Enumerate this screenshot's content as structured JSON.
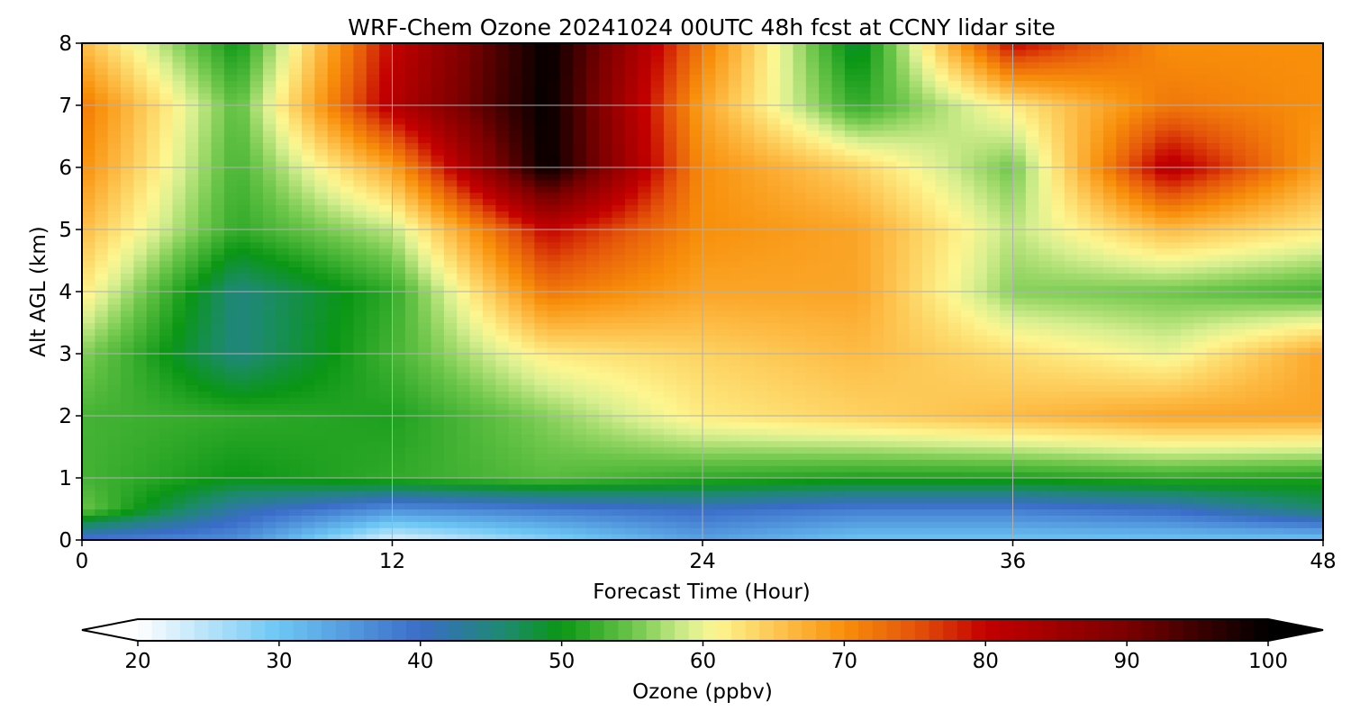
{
  "chart_data": {
    "type": "heatmap",
    "title": "WRF-Chem Ozone  20241024 00UTC 48h fcst at CCNY lidar site",
    "xlabel": "Forecast Time (Hour)",
    "ylabel": "Alt AGL (km)",
    "xlim": [
      0,
      48
    ],
    "ylim": [
      0,
      8
    ],
    "xticks": [
      0,
      12,
      24,
      36,
      48
    ],
    "yticks": [
      0,
      1,
      2,
      3,
      4,
      5,
      6,
      7,
      8
    ],
    "grid": true,
    "x": [
      0,
      6,
      12,
      18,
      24,
      30,
      36,
      42,
      48
    ],
    "y": [
      0,
      0.5,
      1,
      2,
      3,
      4,
      5,
      6,
      7,
      8
    ],
    "z": [
      [
        38,
        36,
        22,
        28,
        34,
        30,
        30,
        30,
        30
      ],
      [
        55,
        42,
        36,
        38,
        40,
        38,
        38,
        40,
        46
      ],
      [
        53,
        50,
        52,
        54,
        52,
        51,
        51,
        52,
        51
      ],
      [
        53,
        52,
        51,
        56,
        62,
        64,
        66,
        68,
        68
      ],
      [
        56,
        45,
        53,
        62,
        64,
        66,
        63,
        60,
        68
      ],
      [
        62,
        45,
        52,
        72,
        68,
        68,
        56,
        55,
        53
      ],
      [
        66,
        52,
        58,
        80,
        70,
        68,
        58,
        66,
        62
      ],
      [
        70,
        53,
        68,
        100,
        70,
        64,
        55,
        82,
        68
      ],
      [
        72,
        54,
        82,
        100,
        68,
        52,
        62,
        72,
        70
      ],
      [
        66,
        50,
        80,
        100,
        72,
        48,
        80,
        70,
        70
      ]
    ],
    "colorbar": {
      "label": "Ozone  (ppbv)",
      "min": 20,
      "max": 100,
      "ticks": [
        20,
        30,
        40,
        50,
        60,
        70,
        80,
        90,
        100
      ],
      "extend": "both",
      "stops": [
        {
          "v": 20,
          "c": "#ffffff"
        },
        {
          "v": 30,
          "c": "#6cc6f4"
        },
        {
          "v": 40,
          "c": "#3a6cc8"
        },
        {
          "v": 46,
          "c": "#1d8a6e"
        },
        {
          "v": 50,
          "c": "#0a9614"
        },
        {
          "v": 55,
          "c": "#6cc64a"
        },
        {
          "v": 59,
          "c": "#d8ef90"
        },
        {
          "v": 61,
          "c": "#fdf690"
        },
        {
          "v": 66,
          "c": "#fdbb44"
        },
        {
          "v": 70,
          "c": "#f88f0a"
        },
        {
          "v": 75,
          "c": "#e4540a"
        },
        {
          "v": 80,
          "c": "#c40000"
        },
        {
          "v": 90,
          "c": "#7a0000"
        },
        {
          "v": 100,
          "c": "#000000"
        }
      ]
    }
  }
}
